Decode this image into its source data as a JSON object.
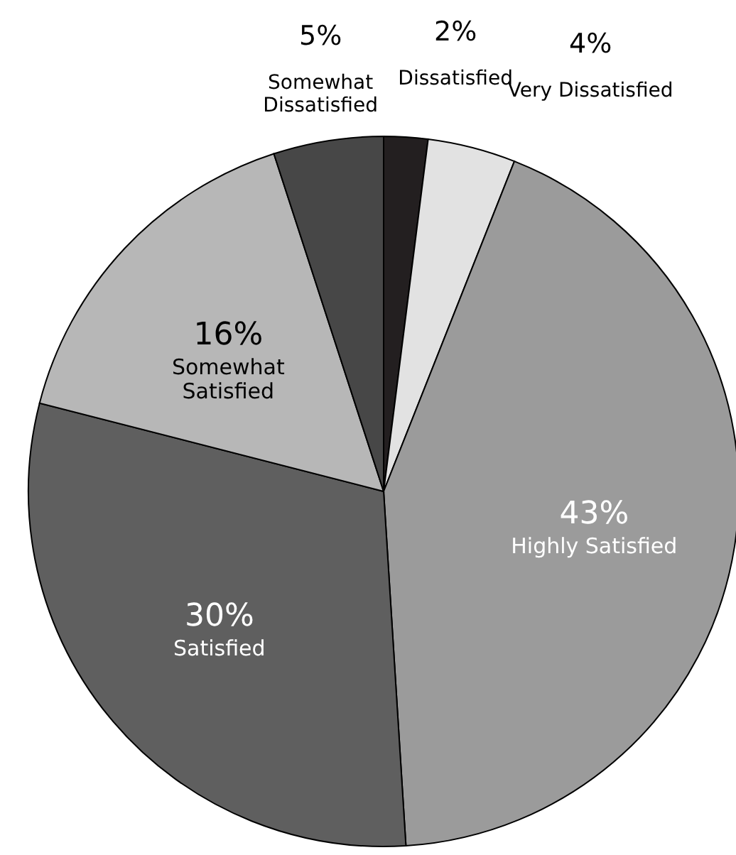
{
  "chart_data": {
    "type": "pie",
    "categories": [
      "Dissatisfied",
      "Very Dissatisfied",
      "Highly Satisfied",
      "Satisfied",
      "Somewhat Satisfied",
      "Somewhat Dissatisfied"
    ],
    "values": [
      2,
      4,
      43,
      30,
      16,
      5
    ],
    "colors": [
      "#231f20",
      "#e2e2e2",
      "#9b9b9b",
      "#5f5f5f",
      "#b7b7b7",
      "#474747"
    ],
    "value_labels": [
      "2%",
      "4%",
      "43%",
      "30%",
      "16%",
      "5%"
    ]
  }
}
